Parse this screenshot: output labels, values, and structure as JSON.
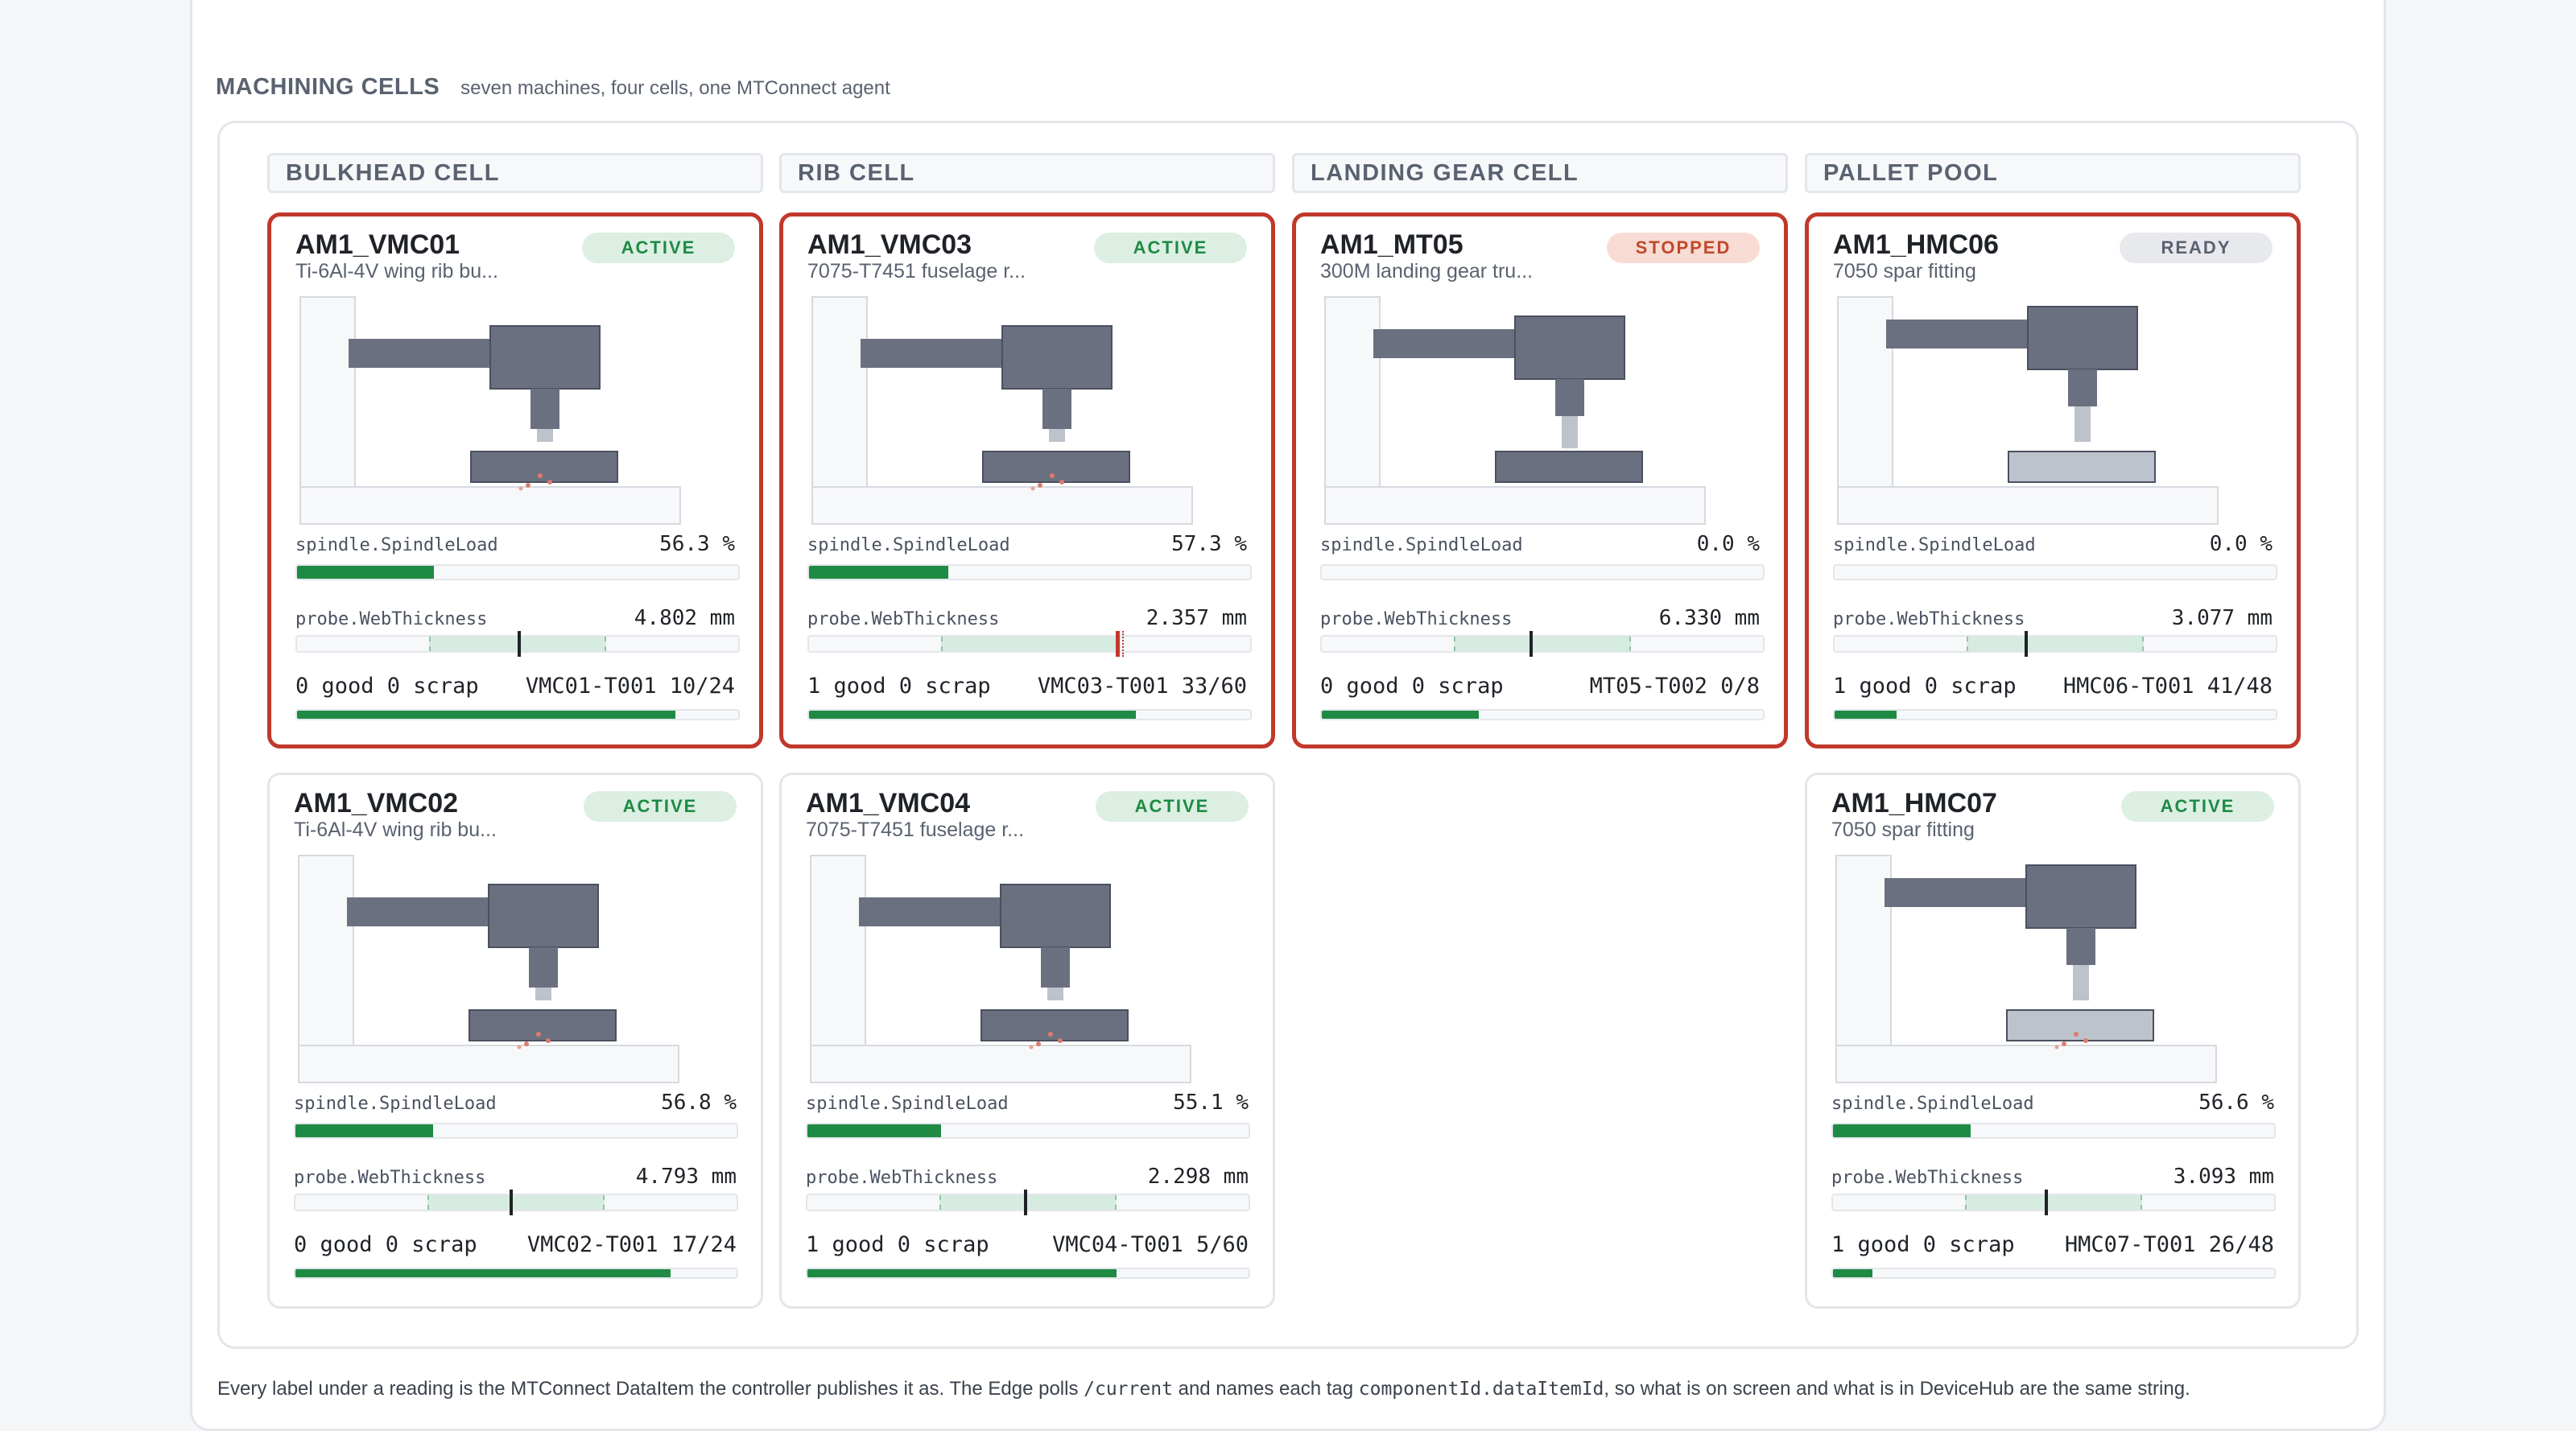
{
  "header": {
    "title": "MACHINING CELLS",
    "subtitle": "seven machines, four cells, one MTConnect agent"
  },
  "cells": [
    {
      "label": "BULKHEAD CELL"
    },
    {
      "label": "RIB CELL"
    },
    {
      "label": "LANDING GEAR CELL"
    },
    {
      "label": "PALLET POOL"
    }
  ],
  "machines": [
    {
      "name": "AM1_VMC01",
      "part": "Ti-6Al-4V wing rib bu...",
      "status": "ACTIVE",
      "load_label": "spindle.SpindleLoad",
      "load_value": "56.3 %",
      "load_pct": 56.3,
      "probe_label": "probe.WebThickness",
      "probe_value": "4.802 mm",
      "probe_pos": 0.5,
      "tol_lo": 0.3,
      "tol_hi": 0.7,
      "counts": "0 good 0 scrap",
      "job": "VMC01-T001 10/24",
      "job_pct": 0.857,
      "tool_status": "cutting",
      "alarm": true
    },
    {
      "name": "AM1_VMC03",
      "part": "7075-T7451 fuselage r...",
      "status": "ACTIVE",
      "load_label": "spindle.SpindleLoad",
      "load_value": "57.3 %",
      "load_pct": 57.3,
      "probe_label": "probe.WebThickness",
      "probe_value": "2.357 mm",
      "probe_pos": 0.695,
      "tol_lo": 0.3,
      "tol_hi": 0.7,
      "counts": "1 good 0 scrap",
      "job": "VMC03-T001 33/60",
      "job_pct": 0.74,
      "tool_status": "cutting",
      "alarm": true,
      "probe_out": true
    },
    {
      "name": "AM1_MT05",
      "part": "300M landing gear tru...",
      "status": "STOPPED",
      "load_label": "spindle.SpindleLoad",
      "load_value": "0.0 %",
      "load_pct": 0,
      "probe_label": "probe.WebThickness",
      "probe_value": "6.330 mm",
      "probe_pos": 0.47,
      "tol_lo": 0.3,
      "tol_hi": 0.7,
      "counts": "0 good 0 scrap",
      "job": "MT05-T002 0/8",
      "job_pct": 0.355,
      "tool_status": "idle",
      "alarm": true
    },
    {
      "name": "AM1_HMC06",
      "part": "7050 spar fitting",
      "status": "READY",
      "load_label": "spindle.SpindleLoad",
      "load_value": "0.0 %",
      "load_pct": 0,
      "probe_label": "probe.WebThickness",
      "probe_value": "3.077 mm",
      "probe_pos": 0.43,
      "tol_lo": 0.3,
      "tol_hi": 0.7,
      "counts": "1 good 0 scrap",
      "job": "HMC06-T001 41/48",
      "job_pct": 0.14,
      "tool_status": "idle",
      "alarm": true
    },
    {
      "name": "AM1_VMC02",
      "part": "Ti-6Al-4V wing rib bu...",
      "status": "ACTIVE",
      "load_label": "spindle.SpindleLoad",
      "load_value": "56.8 %",
      "load_pct": 56.8,
      "probe_label": "probe.WebThickness",
      "probe_value": "4.793 mm",
      "probe_pos": 0.485,
      "tol_lo": 0.3,
      "tol_hi": 0.7,
      "counts": "0 good 0 scrap",
      "job": "VMC02-T001 17/24",
      "job_pct": 0.85,
      "tool_status": "cutting",
      "alarm": false
    },
    {
      "name": "AM1_VMC04",
      "part": "7075-T7451 fuselage r...",
      "status": "ACTIVE",
      "load_label": "spindle.SpindleLoad",
      "load_value": "55.1 %",
      "load_pct": 55.1,
      "probe_label": "probe.WebThickness",
      "probe_value": "2.298 mm",
      "probe_pos": 0.49,
      "tol_lo": 0.3,
      "tol_hi": 0.7,
      "counts": "1 good 0 scrap",
      "job": "VMC04-T001 5/60",
      "job_pct": 0.7,
      "tool_status": "cutting",
      "alarm": false
    },
    {
      "name": "AM1_HMC07",
      "part": "7050 spar fitting",
      "status": "ACTIVE",
      "load_label": "spindle.SpindleLoad",
      "load_value": "56.6 %",
      "load_pct": 56.6,
      "probe_label": "probe.WebThickness",
      "probe_value": "3.093 mm",
      "probe_pos": 0.48,
      "tol_lo": 0.3,
      "tol_hi": 0.7,
      "counts": "1 good 0 scrap",
      "job": "HMC07-T001 26/48",
      "job_pct": 0.09,
      "tool_status": "cutting",
      "alarm": false
    }
  ],
  "footnote": {
    "part1": "Every label under a reading is the MTConnect DataItem the controller publishes it as. The Edge polls ",
    "code1": "/current",
    "part2": " and names each tag ",
    "code2": "componentId.dataItemId",
    "part3": ", so what is on screen and what is in DeviceHub are the same string."
  },
  "colors": {
    "good": "#1e8a44",
    "alarm": "#c0392b",
    "machine_dark": "#6b7080",
    "machine_light": "#bcc3cc"
  }
}
